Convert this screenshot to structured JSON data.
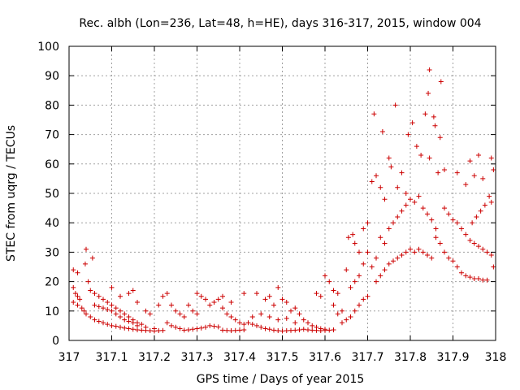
{
  "chart_data": {
    "type": "scatter",
    "title": "Rec. albh (Lon=236, Lat=48, h=HE), days 316-317, 2015, window 004",
    "xlabel": "GPS time / Days of year 2015",
    "ylabel": "STEC from uqrg / TECUs",
    "xlim": [
      317,
      318
    ],
    "ylim": [
      0,
      100
    ],
    "x_ticks": [
      "317",
      "317.1",
      "317.2",
      "317.3",
      "317.4",
      "317.5",
      "317.6",
      "317.7",
      "317.8",
      "317.9",
      "318"
    ],
    "y_ticks": [
      "0",
      "10",
      "20",
      "30",
      "40",
      "50",
      "60",
      "70",
      "80",
      "90",
      "100"
    ],
    "grid": true,
    "marker": "plus",
    "color": "#cc0000",
    "series": [
      {
        "points": [
          [
            317.01,
            24
          ],
          [
            317.02,
            23
          ],
          [
            317.04,
            31
          ],
          [
            317.055,
            28
          ],
          [
            317.038,
            26
          ],
          [
            317.045,
            20
          ],
          [
            317.01,
            18
          ],
          [
            317.015,
            16
          ],
          [
            317.02,
            15
          ],
          [
            317.025,
            14
          ],
          [
            317.01,
            13
          ],
          [
            317.02,
            12
          ],
          [
            317.03,
            11
          ],
          [
            317.035,
            10
          ],
          [
            317.04,
            9
          ],
          [
            317.05,
            8
          ],
          [
            317.06,
            7
          ],
          [
            317.07,
            6.5
          ],
          [
            317.08,
            6
          ],
          [
            317.09,
            5.5
          ],
          [
            317.1,
            5
          ],
          [
            317.11,
            4.8
          ],
          [
            317.12,
            4.5
          ],
          [
            317.13,
            4.2
          ],
          [
            317.14,
            4
          ],
          [
            317.15,
            3.8
          ],
          [
            317.16,
            3.6
          ],
          [
            317.17,
            3.5
          ],
          [
            317.18,
            3.4
          ],
          [
            317.19,
            3.3
          ],
          [
            317.2,
            3.2
          ],
          [
            317.21,
            3.3
          ],
          [
            317.22,
            3.4
          ],
          [
            317.05,
            17
          ],
          [
            317.06,
            16
          ],
          [
            317.07,
            15
          ],
          [
            317.08,
            14
          ],
          [
            317.09,
            13
          ],
          [
            317.1,
            12
          ],
          [
            317.11,
            11
          ],
          [
            317.12,
            10
          ],
          [
            317.13,
            9
          ],
          [
            317.14,
            8
          ],
          [
            317.15,
            7
          ],
          [
            317.16,
            6
          ],
          [
            317.17,
            5.5
          ],
          [
            317.06,
            12
          ],
          [
            317.07,
            11.5
          ],
          [
            317.08,
            11
          ],
          [
            317.09,
            10.5
          ],
          [
            317.1,
            10
          ],
          [
            317.11,
            9
          ],
          [
            317.12,
            8
          ],
          [
            317.13,
            7
          ],
          [
            317.14,
            6.5
          ],
          [
            317.15,
            6
          ],
          [
            317.16,
            5
          ],
          [
            317.18,
            4.5
          ],
          [
            317.2,
            4
          ],
          [
            317.1,
            18
          ],
          [
            317.12,
            15
          ],
          [
            317.14,
            16
          ],
          [
            317.15,
            17
          ],
          [
            317.16,
            13
          ],
          [
            317.18,
            10
          ],
          [
            317.19,
            9
          ],
          [
            317.21,
            12
          ],
          [
            317.22,
            15
          ],
          [
            317.23,
            16
          ],
          [
            317.24,
            12
          ],
          [
            317.25,
            10
          ],
          [
            317.26,
            9
          ],
          [
            317.27,
            8
          ],
          [
            317.23,
            6
          ],
          [
            317.24,
            5
          ],
          [
            317.25,
            4.5
          ],
          [
            317.26,
            4
          ],
          [
            317.27,
            3.5
          ],
          [
            317.28,
            3.6
          ],
          [
            317.29,
            3.8
          ],
          [
            317.3,
            4
          ],
          [
            317.31,
            4.2
          ],
          [
            317.32,
            4.5
          ],
          [
            317.33,
            5
          ],
          [
            317.34,
            4.8
          ],
          [
            317.35,
            4.6
          ],
          [
            317.28,
            12
          ],
          [
            317.29,
            10
          ],
          [
            317.3,
            9
          ],
          [
            317.31,
            15
          ],
          [
            317.32,
            14
          ],
          [
            317.33,
            12
          ],
          [
            317.34,
            13
          ],
          [
            317.35,
            14
          ],
          [
            317.36,
            11
          ],
          [
            317.37,
            9
          ],
          [
            317.38,
            8
          ],
          [
            317.39,
            7
          ],
          [
            317.4,
            6
          ],
          [
            317.41,
            5.5
          ],
          [
            317.3,
            16
          ],
          [
            317.36,
            15
          ],
          [
            317.38,
            13
          ],
          [
            317.41,
            16
          ],
          [
            317.44,
            16
          ],
          [
            317.46,
            14
          ],
          [
            317.47,
            15
          ],
          [
            317.48,
            12
          ],
          [
            317.49,
            18
          ],
          [
            317.5,
            14
          ],
          [
            317.51,
            13
          ],
          [
            317.52,
            10
          ],
          [
            317.53,
            11
          ],
          [
            317.54,
            9
          ],
          [
            317.42,
            6
          ],
          [
            317.43,
            5.5
          ],
          [
            317.44,
            5
          ],
          [
            317.45,
            4.5
          ],
          [
            317.46,
            4
          ],
          [
            317.47,
            3.8
          ],
          [
            317.48,
            3.5
          ],
          [
            317.49,
            3.3
          ],
          [
            317.5,
            3.2
          ],
          [
            317.51,
            3.3
          ],
          [
            317.52,
            3.4
          ],
          [
            317.53,
            3.5
          ],
          [
            317.54,
            3.6
          ],
          [
            317.36,
            3.5
          ],
          [
            317.37,
            3.4
          ],
          [
            317.38,
            3.3
          ],
          [
            317.39,
            3.4
          ],
          [
            317.4,
            3.5
          ],
          [
            317.41,
            3.6
          ],
          [
            317.43,
            8
          ],
          [
            317.45,
            9
          ],
          [
            317.47,
            8
          ],
          [
            317.49,
            7
          ],
          [
            317.51,
            7.5
          ],
          [
            317.53,
            6
          ],
          [
            317.55,
            7
          ],
          [
            317.56,
            6
          ],
          [
            317.57,
            5
          ],
          [
            317.58,
            4.5
          ],
          [
            317.59,
            4
          ],
          [
            317.6,
            3.8
          ],
          [
            317.61,
            3.5
          ],
          [
            317.62,
            3.6
          ],
          [
            317.55,
            3.8
          ],
          [
            317.56,
            3.6
          ],
          [
            317.57,
            3.5
          ],
          [
            317.58,
            3.4
          ],
          [
            317.59,
            3.3
          ],
          [
            317.6,
            3.4
          ],
          [
            317.58,
            16
          ],
          [
            317.59,
            15
          ],
          [
            317.6,
            22
          ],
          [
            317.61,
            20
          ],
          [
            317.62,
            17
          ],
          [
            317.63,
            16
          ],
          [
            317.62,
            12
          ],
          [
            317.63,
            9
          ],
          [
            317.64,
            10
          ],
          [
            317.65,
            24
          ],
          [
            317.655,
            35
          ],
          [
            317.665,
            36
          ],
          [
            317.67,
            33
          ],
          [
            317.68,
            30
          ],
          [
            317.64,
            6
          ],
          [
            317.65,
            7
          ],
          [
            317.66,
            8
          ],
          [
            317.67,
            10
          ],
          [
            317.68,
            12
          ],
          [
            317.69,
            14
          ],
          [
            317.7,
            15
          ],
          [
            317.66,
            18
          ],
          [
            317.67,
            20
          ],
          [
            317.68,
            22
          ],
          [
            317.69,
            26
          ],
          [
            317.7,
            30
          ],
          [
            317.71,
            25
          ],
          [
            317.72,
            28
          ],
          [
            317.69,
            38
          ],
          [
            317.7,
            40
          ],
          [
            317.71,
            54
          ],
          [
            317.72,
            56
          ],
          [
            317.73,
            52
          ],
          [
            317.74,
            48
          ],
          [
            317.715,
            77
          ],
          [
            317.735,
            71
          ],
          [
            317.75,
            62
          ],
          [
            317.755,
            59
          ],
          [
            317.765,
            80
          ],
          [
            317.77,
            52
          ],
          [
            317.78,
            57
          ],
          [
            317.79,
            50
          ],
          [
            317.72,
            20
          ],
          [
            317.73,
            22
          ],
          [
            317.74,
            24
          ],
          [
            317.75,
            26
          ],
          [
            317.76,
            27
          ],
          [
            317.77,
            28
          ],
          [
            317.78,
            29
          ],
          [
            317.79,
            30
          ],
          [
            317.8,
            31
          ],
          [
            317.81,
            30
          ],
          [
            317.82,
            31
          ],
          [
            317.83,
            30
          ],
          [
            317.84,
            29
          ],
          [
            317.85,
            28
          ],
          [
            317.73,
            35
          ],
          [
            317.74,
            33
          ],
          [
            317.75,
            38
          ],
          [
            317.76,
            40
          ],
          [
            317.77,
            42
          ],
          [
            317.78,
            44
          ],
          [
            317.79,
            46
          ],
          [
            317.8,
            48
          ],
          [
            317.81,
            47
          ],
          [
            317.82,
            49
          ],
          [
            317.83,
            45
          ],
          [
            317.84,
            43
          ],
          [
            317.85,
            41
          ],
          [
            317.86,
            38
          ],
          [
            317.795,
            70
          ],
          [
            317.805,
            74
          ],
          [
            317.815,
            66
          ],
          [
            317.825,
            63
          ],
          [
            317.835,
            77
          ],
          [
            317.845,
            62
          ],
          [
            317.855,
            76
          ],
          [
            317.858,
            73
          ],
          [
            317.865,
            57
          ],
          [
            317.87,
            69
          ],
          [
            317.872,
            88
          ],
          [
            317.845,
            92
          ],
          [
            317.842,
            84
          ],
          [
            317.88,
            58
          ],
          [
            317.86,
            35
          ],
          [
            317.87,
            33
          ],
          [
            317.88,
            30
          ],
          [
            317.89,
            28
          ],
          [
            317.9,
            27
          ],
          [
            317.91,
            25
          ],
          [
            317.92,
            23
          ],
          [
            317.93,
            22
          ],
          [
            317.94,
            21.5
          ],
          [
            317.95,
            21
          ],
          [
            317.96,
            21
          ],
          [
            317.97,
            20.5
          ],
          [
            317.98,
            20.5
          ],
          [
            317.88,
            45
          ],
          [
            317.89,
            43
          ],
          [
            317.9,
            41
          ],
          [
            317.91,
            40
          ],
          [
            317.92,
            38
          ],
          [
            317.93,
            36
          ],
          [
            317.94,
            34
          ],
          [
            317.95,
            33
          ],
          [
            317.96,
            32
          ],
          [
            317.97,
            31
          ],
          [
            317.98,
            30
          ],
          [
            317.99,
            29
          ],
          [
            317.995,
            25
          ],
          [
            317.91,
            57
          ],
          [
            317.93,
            53
          ],
          [
            317.94,
            61
          ],
          [
            317.95,
            56
          ],
          [
            317.96,
            63
          ],
          [
            317.97,
            55
          ],
          [
            317.99,
            62
          ],
          [
            317.995,
            58
          ],
          [
            317.985,
            49
          ],
          [
            317.975,
            46
          ],
          [
            317.965,
            44
          ],
          [
            317.955,
            42
          ],
          [
            317.945,
            40
          ],
          [
            317.99,
            47
          ]
        ]
      }
    ]
  }
}
